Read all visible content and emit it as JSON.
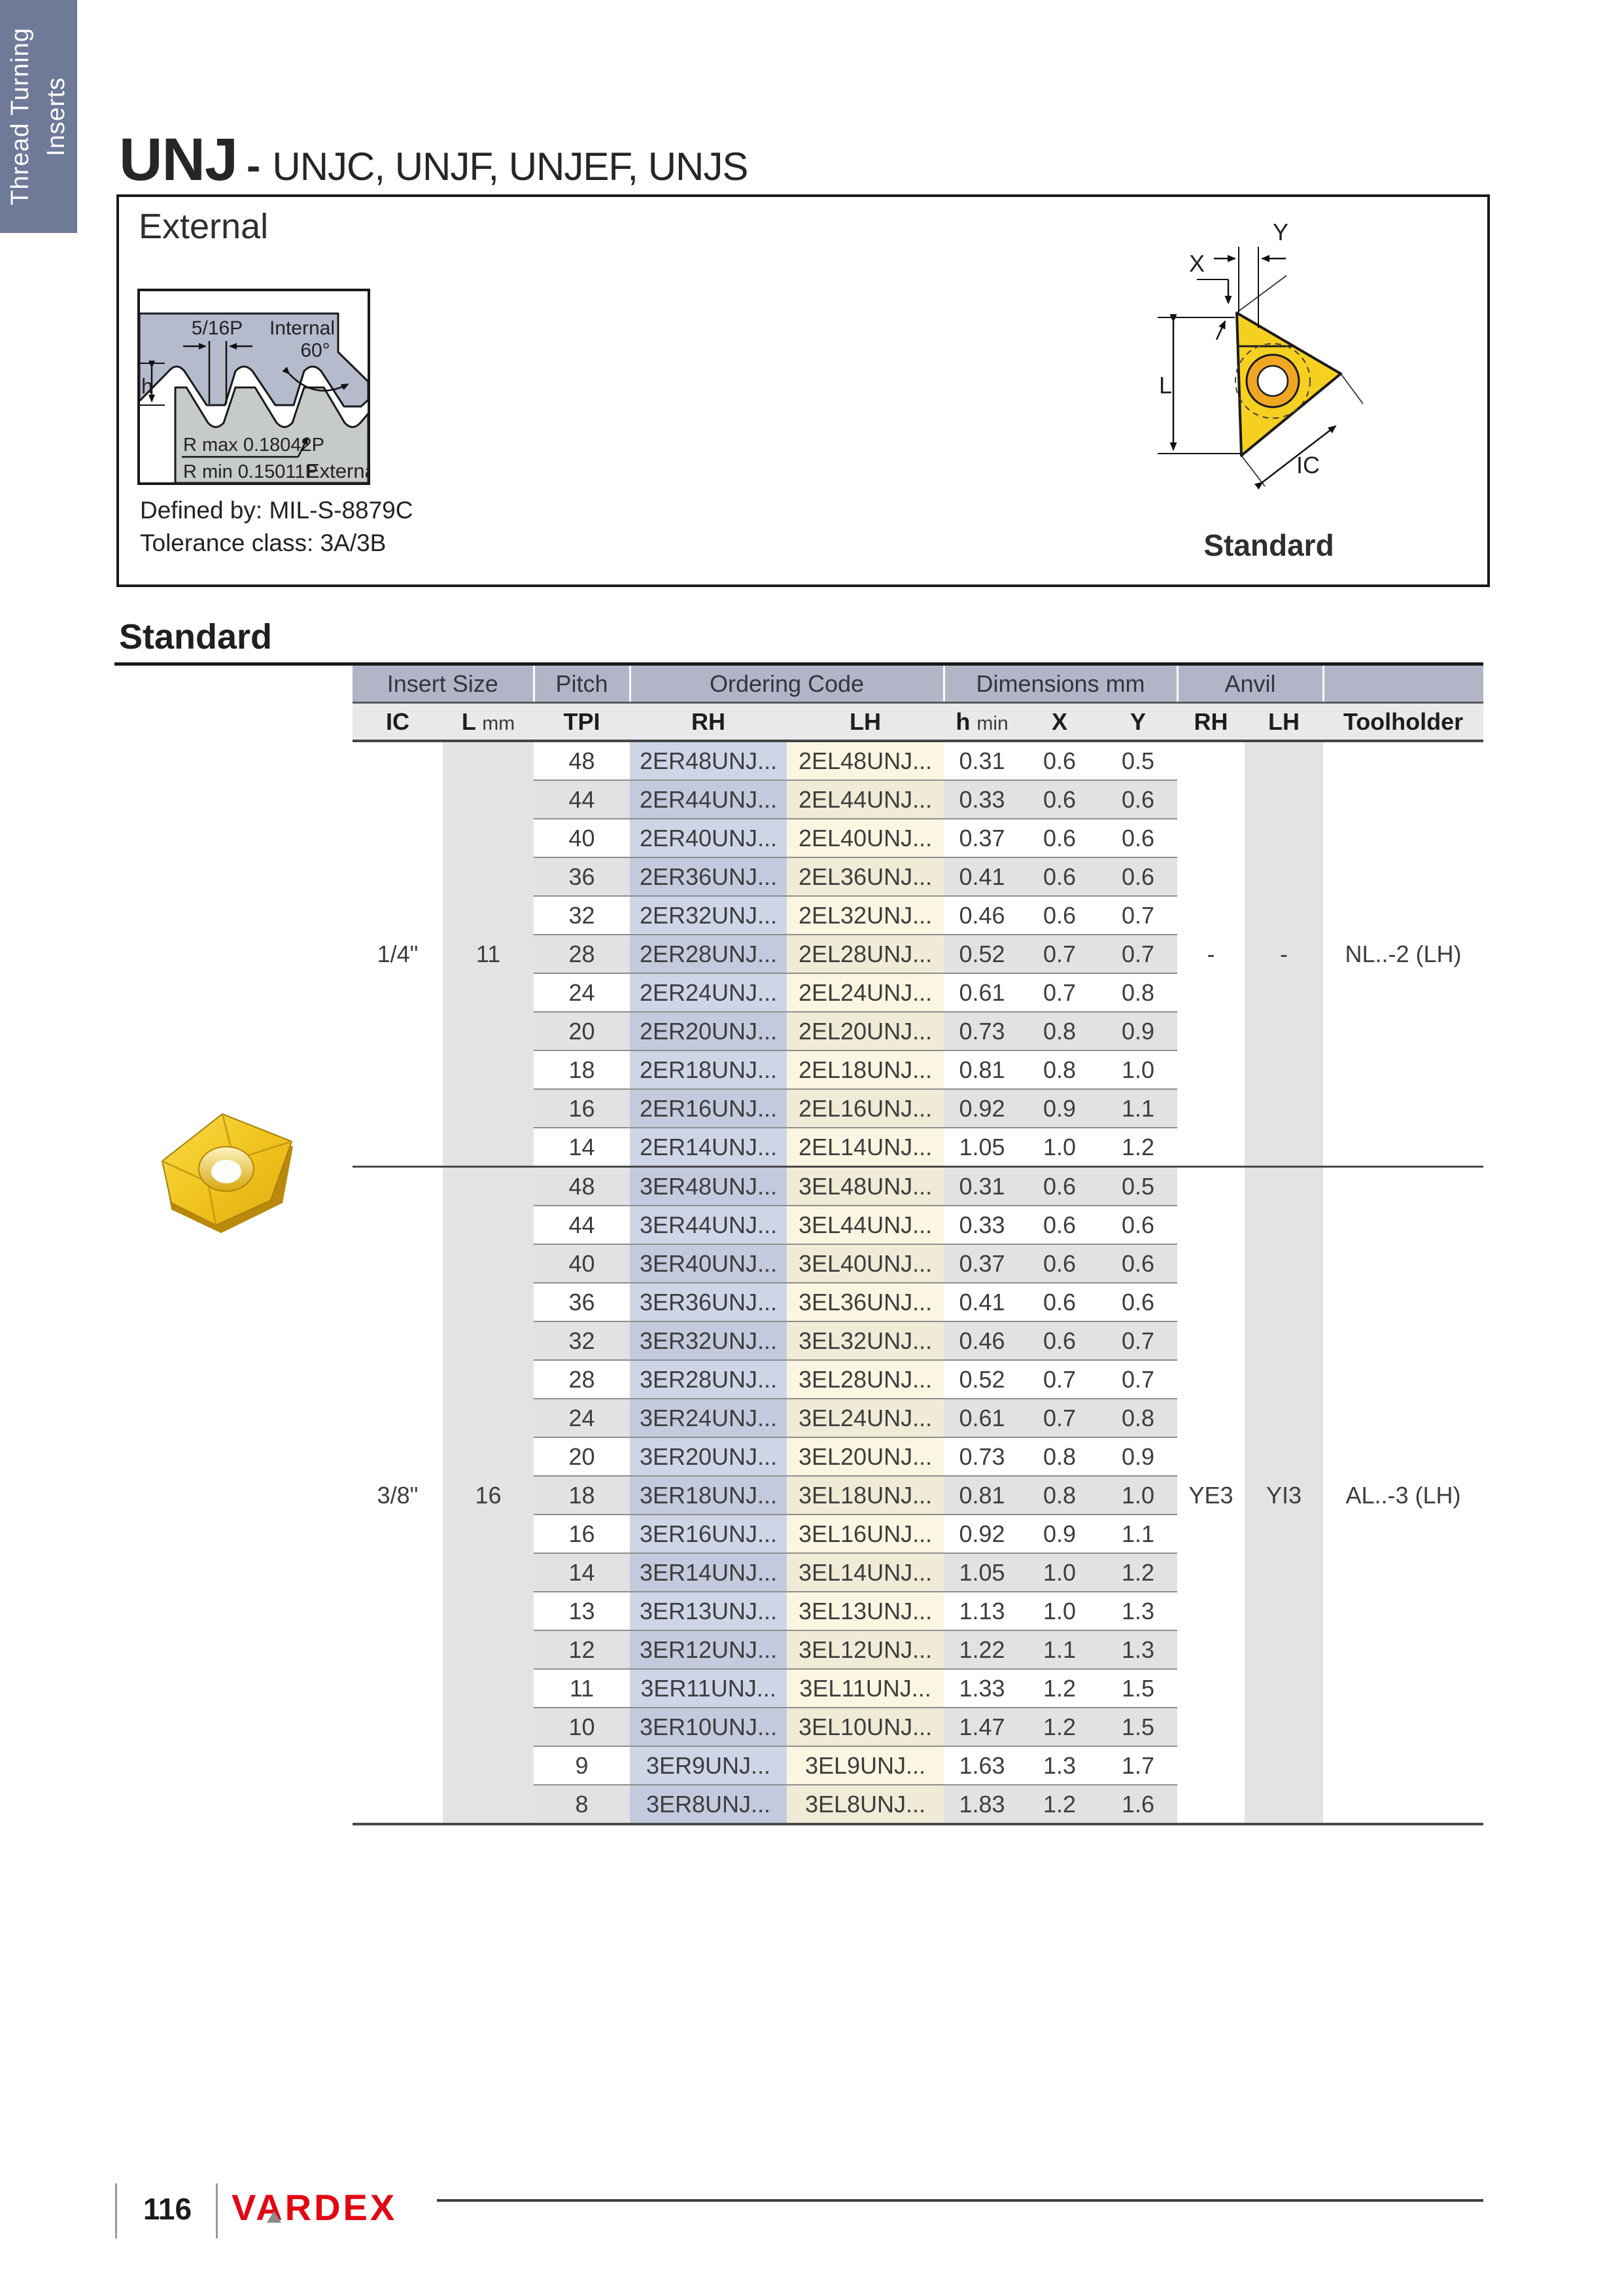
{
  "sidebar": {
    "line1": "Thread Turning",
    "line2": "Inserts"
  },
  "header": {
    "title": "UNJ",
    "dash": "-",
    "subtitle": "UNJC, UNJF, UNJEF, UNJS"
  },
  "external_box": {
    "title": "External",
    "defined_by": "Defined by: MIL-S-8879C",
    "tolerance": "Tolerance class: 3A/3B",
    "profile_labels": {
      "pitch": "5/16P",
      "internal": "Internal",
      "angle": "60°",
      "h": "h",
      "rmax": "R max 0.18042P",
      "rmin": "R min 0.15011P",
      "external": "External"
    },
    "insert_labels": {
      "x": "X",
      "y": "Y",
      "l": "L",
      "ic": "IC",
      "caption": "Standard"
    }
  },
  "section_title": "Standard",
  "table": {
    "group_headers": [
      "Insert Size",
      "Pitch",
      "Ordering Code",
      "Dimensions mm",
      "Anvil",
      ""
    ],
    "col_headers": {
      "ic": "IC",
      "l": "L",
      "l_unit": "mm",
      "tpi": "TPI",
      "rh": "RH",
      "lh": "LH",
      "h": "h",
      "h_unit": "min",
      "x": "X",
      "y": "Y",
      "anvil_rh": "RH",
      "anvil_lh": "LH",
      "toolholder": "Toolholder"
    },
    "sections": [
      {
        "ic": "1/4\"",
        "l_mm": "11",
        "anvil_rh": "-",
        "anvil_lh": "-",
        "toolholder": "NL..-2 (LH)",
        "rows": [
          {
            "tpi": "48",
            "rh": "2ER48UNJ...",
            "lh": "2EL48UNJ...",
            "h_min": "0.31",
            "x": "0.6",
            "y": "0.5"
          },
          {
            "tpi": "44",
            "rh": "2ER44UNJ...",
            "lh": "2EL44UNJ...",
            "h_min": "0.33",
            "x": "0.6",
            "y": "0.6"
          },
          {
            "tpi": "40",
            "rh": "2ER40UNJ...",
            "lh": "2EL40UNJ...",
            "h_min": "0.37",
            "x": "0.6",
            "y": "0.6"
          },
          {
            "tpi": "36",
            "rh": "2ER36UNJ...",
            "lh": "2EL36UNJ...",
            "h_min": "0.41",
            "x": "0.6",
            "y": "0.6"
          },
          {
            "tpi": "32",
            "rh": "2ER32UNJ...",
            "lh": "2EL32UNJ...",
            "h_min": "0.46",
            "x": "0.6",
            "y": "0.7"
          },
          {
            "tpi": "28",
            "rh": "2ER28UNJ...",
            "lh": "2EL28UNJ...",
            "h_min": "0.52",
            "x": "0.7",
            "y": "0.7"
          },
          {
            "tpi": "24",
            "rh": "2ER24UNJ...",
            "lh": "2EL24UNJ...",
            "h_min": "0.61",
            "x": "0.7",
            "y": "0.8"
          },
          {
            "tpi": "20",
            "rh": "2ER20UNJ...",
            "lh": "2EL20UNJ...",
            "h_min": "0.73",
            "x": "0.8",
            "y": "0.9"
          },
          {
            "tpi": "18",
            "rh": "2ER18UNJ...",
            "lh": "2EL18UNJ...",
            "h_min": "0.81",
            "x": "0.8",
            "y": "1.0"
          },
          {
            "tpi": "16",
            "rh": "2ER16UNJ...",
            "lh": "2EL16UNJ...",
            "h_min": "0.92",
            "x": "0.9",
            "y": "1.1"
          },
          {
            "tpi": "14",
            "rh": "2ER14UNJ...",
            "lh": "2EL14UNJ...",
            "h_min": "1.05",
            "x": "1.0",
            "y": "1.2"
          }
        ]
      },
      {
        "ic": "3/8\"",
        "l_mm": "16",
        "anvil_rh": "YE3",
        "anvil_lh": "YI3",
        "toolholder": "AL..-3 (LH)",
        "rows": [
          {
            "tpi": "48",
            "rh": "3ER48UNJ...",
            "lh": "3EL48UNJ...",
            "h_min": "0.31",
            "x": "0.6",
            "y": "0.5"
          },
          {
            "tpi": "44",
            "rh": "3ER44UNJ...",
            "lh": "3EL44UNJ...",
            "h_min": "0.33",
            "x": "0.6",
            "y": "0.6"
          },
          {
            "tpi": "40",
            "rh": "3ER40UNJ...",
            "lh": "3EL40UNJ...",
            "h_min": "0.37",
            "x": "0.6",
            "y": "0.6"
          },
          {
            "tpi": "36",
            "rh": "3ER36UNJ...",
            "lh": "3EL36UNJ...",
            "h_min": "0.41",
            "x": "0.6",
            "y": "0.6"
          },
          {
            "tpi": "32",
            "rh": "3ER32UNJ...",
            "lh": "3EL32UNJ...",
            "h_min": "0.46",
            "x": "0.6",
            "y": "0.7"
          },
          {
            "tpi": "28",
            "rh": "3ER28UNJ...",
            "lh": "3EL28UNJ...",
            "h_min": "0.52",
            "x": "0.7",
            "y": "0.7"
          },
          {
            "tpi": "24",
            "rh": "3ER24UNJ...",
            "lh": "3EL24UNJ...",
            "h_min": "0.61",
            "x": "0.7",
            "y": "0.8"
          },
          {
            "tpi": "20",
            "rh": "3ER20UNJ...",
            "lh": "3EL20UNJ...",
            "h_min": "0.73",
            "x": "0.8",
            "y": "0.9"
          },
          {
            "tpi": "18",
            "rh": "3ER18UNJ...",
            "lh": "3EL18UNJ...",
            "h_min": "0.81",
            "x": "0.8",
            "y": "1.0"
          },
          {
            "tpi": "16",
            "rh": "3ER16UNJ...",
            "lh": "3EL16UNJ...",
            "h_min": "0.92",
            "x": "0.9",
            "y": "1.1"
          },
          {
            "tpi": "14",
            "rh": "3ER14UNJ...",
            "lh": "3EL14UNJ...",
            "h_min": "1.05",
            "x": "1.0",
            "y": "1.2"
          },
          {
            "tpi": "13",
            "rh": "3ER13UNJ...",
            "lh": "3EL13UNJ...",
            "h_min": "1.13",
            "x": "1.0",
            "y": "1.3"
          },
          {
            "tpi": "12",
            "rh": "3ER12UNJ...",
            "lh": "3EL12UNJ...",
            "h_min": "1.22",
            "x": "1.1",
            "y": "1.3"
          },
          {
            "tpi": "11",
            "rh": "3ER11UNJ...",
            "lh": "3EL11UNJ...",
            "h_min": "1.33",
            "x": "1.2",
            "y": "1.5"
          },
          {
            "tpi": "10",
            "rh": "3ER10UNJ...",
            "lh": "3EL10UNJ...",
            "h_min": "1.47",
            "x": "1.2",
            "y": "1.5"
          },
          {
            "tpi": "9",
            "rh": "3ER9UNJ...",
            "lh": "3EL9UNJ...",
            "h_min": "1.63",
            "x": "1.3",
            "y": "1.7"
          },
          {
            "tpi": "8",
            "rh": "3ER8UNJ...",
            "lh": "3EL8UNJ...",
            "h_min": "1.83",
            "x": "1.2",
            "y": "1.6"
          }
        ]
      }
    ]
  },
  "footer": {
    "page_number": "116",
    "brand": "VARDEX"
  },
  "colors": {
    "accent_band": "#b2b5c7",
    "tab": "#6f7a99",
    "rh_tint": "#cdd5e7",
    "lh_tint": "#faf6e1",
    "brand_red": "#e30613",
    "insert_yellow": "#f2c51a"
  }
}
